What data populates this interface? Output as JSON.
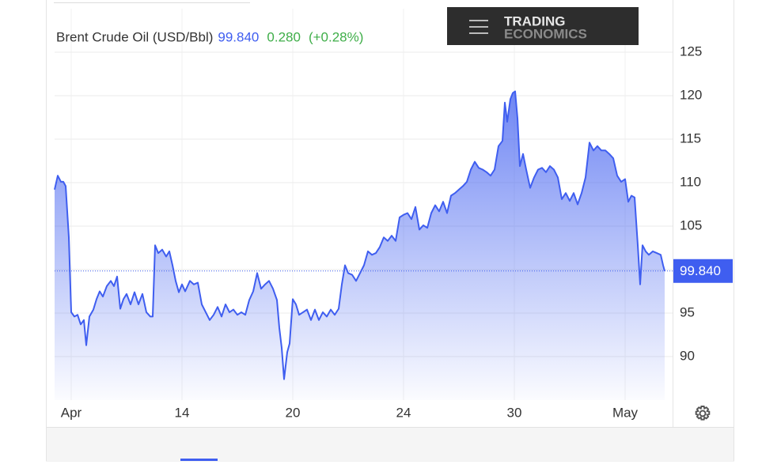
{
  "chart_data": {
    "type": "line",
    "title": "Brent Crude Oil (USD/Bbl)",
    "last_price": {
      "value": 99.84,
      "label": "99.840"
    },
    "change": "0.280",
    "change_pct": "(+0.28%)",
    "logo": [
      "TRADING",
      "ECONOMICS"
    ],
    "color": "#3f5ef0",
    "grid": true,
    "xlim": [
      -21,
      756
    ],
    "xticks": [
      {
        "value": 0,
        "label": "Apr"
      },
      {
        "value": 140,
        "label": "14"
      },
      {
        "value": 280,
        "label": "20"
      },
      {
        "value": 420,
        "label": "24"
      },
      {
        "value": 560,
        "label": "30"
      },
      {
        "value": 700,
        "label": "May"
      }
    ],
    "ylim": [
      85,
      130
    ],
    "yticks": [
      90,
      95,
      100,
      105,
      110,
      115,
      120,
      125
    ],
    "x": [
      -21,
      -17,
      -13,
      -10,
      -7,
      -3,
      0,
      4,
      8,
      12,
      16,
      19,
      23,
      28,
      32,
      36,
      40,
      45,
      50,
      54,
      58,
      62,
      66,
      70,
      75,
      80,
      85,
      90,
      95,
      100,
      103,
      106,
      110,
      115,
      120,
      124,
      128,
      132,
      136,
      140,
      144,
      150,
      155,
      160,
      165,
      170,
      175,
      180,
      185,
      190,
      195,
      200,
      205,
      210,
      215,
      220,
      225,
      230,
      235,
      240,
      245,
      250,
      255,
      260,
      263,
      266,
      269,
      273,
      276,
      280,
      284,
      288,
      293,
      298,
      303,
      308,
      313,
      318,
      323,
      328,
      333,
      338,
      342,
      346,
      350,
      355,
      360,
      365,
      370,
      375,
      380,
      385,
      390,
      395,
      400,
      405,
      410,
      415,
      420,
      425,
      430,
      435,
      440,
      445,
      450,
      455,
      460,
      465,
      470,
      475,
      480,
      485,
      490,
      495,
      500,
      505,
      510,
      515,
      520,
      525,
      530,
      535,
      540,
      545,
      548,
      551,
      555,
      558,
      561,
      564,
      567,
      571,
      575,
      580,
      585,
      590,
      595,
      600,
      605,
      610,
      615,
      620,
      625,
      630,
      635,
      640,
      645,
      650,
      655,
      660,
      665,
      670,
      675,
      680,
      685,
      690,
      695,
      700,
      704,
      708,
      712,
      716,
      719,
      722,
      726,
      730,
      735,
      740,
      745,
      748,
      750
    ],
    "values": [
      109.2,
      110.8,
      110.1,
      110.1,
      109.6,
      103.7,
      95.1,
      94.6,
      94.8,
      93.7,
      94.2,
      91.3,
      94.6,
      95.4,
      96.6,
      97.5,
      96.9,
      98.1,
      98.7,
      98.1,
      99.2,
      95.5,
      96.6,
      97.2,
      96.0,
      97.4,
      96.0,
      97.2,
      95.1,
      94.6,
      94.6,
      102.8,
      101.9,
      102.3,
      101.5,
      102.1,
      100.5,
      98.7,
      97.4,
      98.3,
      97.5,
      98.7,
      98.3,
      98.5,
      96.0,
      95.1,
      94.2,
      94.8,
      95.7,
      94.6,
      96.0,
      95.1,
      95.4,
      94.8,
      95.1,
      94.8,
      96.5,
      97.5,
      99.6,
      97.8,
      98.3,
      98.7,
      97.8,
      96.5,
      93.3,
      91.0,
      87.4,
      90.5,
      91.5,
      96.6,
      96.0,
      94.8,
      95.1,
      95.4,
      94.2,
      95.4,
      94.2,
      95.1,
      94.6,
      95.4,
      94.8,
      95.5,
      98.3,
      100.5,
      99.6,
      99.4,
      98.7,
      99.6,
      100.5,
      102.1,
      101.7,
      101.9,
      102.6,
      103.7,
      103.3,
      103.9,
      103.3,
      106.0,
      106.3,
      106.5,
      105.8,
      107.2,
      104.6,
      105.1,
      104.8,
      106.5,
      107.4,
      106.7,
      107.8,
      106.5,
      108.5,
      108.8,
      109.2,
      109.6,
      110.1,
      111.5,
      112.4,
      111.7,
      111.5,
      111.2,
      110.8,
      111.5,
      114.2,
      114.8,
      119.2,
      117.0,
      119.6,
      120.3,
      120.5,
      117.4,
      111.9,
      113.3,
      111.5,
      109.4,
      110.6,
      111.5,
      111.7,
      111.2,
      111.9,
      111.5,
      110.6,
      108.1,
      108.8,
      107.9,
      108.8,
      107.5,
      108.8,
      110.6,
      114.6,
      113.7,
      114.2,
      113.7,
      113.7,
      113.3,
      112.8,
      110.8,
      110.1,
      110.4,
      107.8,
      108.5,
      108.3,
      102.8,
      98.3,
      102.8,
      102.1,
      101.7,
      102.1,
      101.9,
      101.7,
      100.5,
      99.84
    ]
  }
}
